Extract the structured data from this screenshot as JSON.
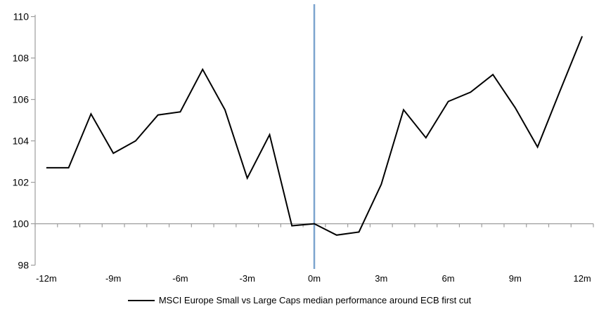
{
  "chart_data": {
    "type": "line",
    "title": "",
    "legend": [
      "MSCI Europe Small vs Large Caps median performance around ECB first cut"
    ],
    "legend_position": "bottom",
    "x": [
      -12,
      -11,
      -10,
      -9,
      -8,
      -7,
      -6,
      -5,
      -4,
      -3,
      -2,
      -1,
      0,
      1,
      2,
      3,
      4,
      5,
      6,
      7,
      8,
      9,
      10,
      11,
      12
    ],
    "series": [
      {
        "name": "MSCI Europe Small vs Large Caps median performance around ECB first cut",
        "color": "#000000",
        "values": [
          102.7,
          102.7,
          105.3,
          103.4,
          104.0,
          105.25,
          105.4,
          107.45,
          105.5,
          102.2,
          104.3,
          99.9,
          100.0,
          99.45,
          99.6,
          101.9,
          105.5,
          104.15,
          105.9,
          106.35,
          107.2,
          105.6,
          103.7,
          106.4,
          109.05
        ]
      }
    ],
    "y_ticks": [
      98,
      100,
      102,
      104,
      106,
      108,
      110
    ],
    "ylim": [
      98,
      110
    ],
    "x_axis_cross_at": 100,
    "x_axis_labels": [
      "-12m",
      "-9m",
      "-6m",
      "-3m",
      "0m",
      "3m",
      "6m",
      "9m",
      "12m"
    ],
    "x_axis_label_months": [
      -12,
      -9,
      -6,
      -3,
      0,
      3,
      6,
      9,
      12
    ],
    "event_line": {
      "x_month": 0,
      "color": "#7ca4ce"
    },
    "grid": "off",
    "colors": {
      "axis": "#9e9e9e",
      "line": "#000000",
      "event_line": "#7ca4ce",
      "text": "#000000",
      "background": "#ffffff"
    }
  }
}
